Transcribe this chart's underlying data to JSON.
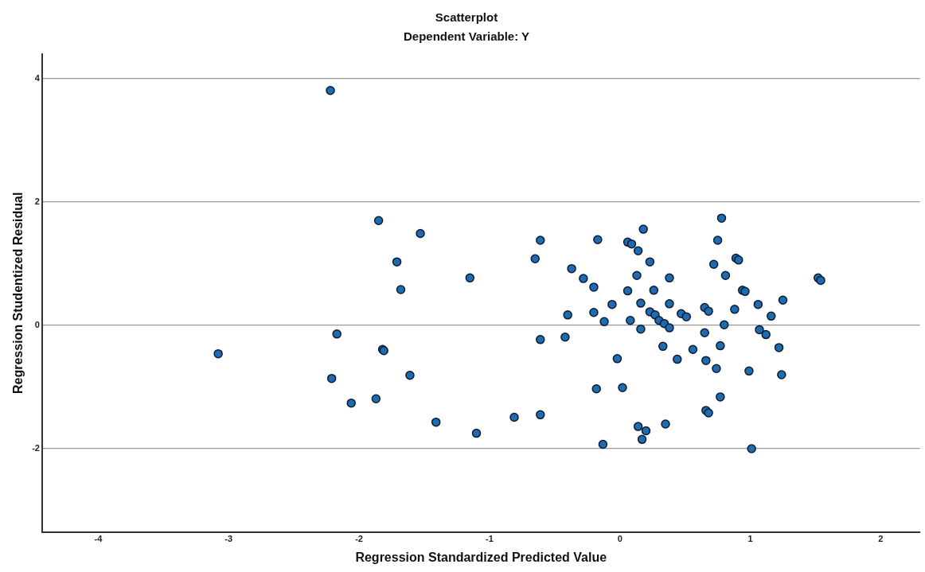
{
  "chart_data": {
    "type": "scatter",
    "title": "Scatterplot",
    "subtitle": "Dependent Variable: Y",
    "xlabel": "Regression Standardized Predicted Value",
    "ylabel": "Regression Studentized Residual",
    "xlim": [
      -4.43,
      2.3
    ],
    "ylim": [
      -3.35,
      4.4
    ],
    "xticks": [
      -4,
      -3,
      -2,
      -1,
      0,
      1,
      2
    ],
    "yticks": [
      -2,
      0,
      2,
      4
    ],
    "grid": "y",
    "marker": "circle",
    "legend": false,
    "series": [
      {
        "color": "#1f6bb0",
        "x": [
          -3.08,
          -2.22,
          -2.17,
          -2.21,
          -2.06,
          -1.87,
          -1.85,
          -1.82,
          -1.81,
          -1.71,
          -1.68,
          -1.61,
          -1.53,
          -1.41,
          -1.15,
          -1.1,
          -0.81,
          -0.61,
          -0.65,
          -0.61,
          -0.61,
          -0.37,
          -0.42,
          -0.4,
          -0.28,
          -0.2,
          -0.2,
          -0.18,
          -0.17,
          -0.12,
          -0.13,
          -0.06,
          -0.02,
          0.02,
          0.06,
          0.08,
          0.06,
          0.09,
          0.14,
          0.14,
          0.2,
          0.17,
          0.18,
          0.23,
          0.13,
          0.16,
          0.26,
          0.38,
          0.16,
          0.23,
          0.27,
          0.3,
          0.34,
          0.38,
          0.38,
          0.33,
          0.44,
          0.47,
          0.51,
          0.56,
          0.65,
          0.68,
          0.65,
          0.66,
          0.74,
          0.77,
          0.66,
          0.68,
          0.77,
          0.35,
          0.78,
          0.75,
          0.72,
          0.81,
          0.89,
          0.91,
          0.8,
          0.88,
          0.94,
          0.96,
          0.99,
          1.06,
          1.07,
          1.12,
          1.16,
          1.25,
          1.22,
          1.24,
          1.01,
          1.52,
          1.54
        ],
        "values": [
          -0.46,
          3.81,
          -0.14,
          -0.86,
          -1.26,
          -1.19,
          1.7,
          -0.39,
          -0.41,
          1.03,
          0.58,
          -0.81,
          1.49,
          -1.57,
          0.77,
          -1.75,
          -1.49,
          1.38,
          1.08,
          -0.23,
          -1.45,
          0.92,
          -0.19,
          0.17,
          0.76,
          0.62,
          0.21,
          -1.03,
          1.39,
          0.06,
          -1.93,
          0.34,
          -0.54,
          -1.01,
          0.56,
          0.08,
          1.35,
          1.32,
          1.21,
          -1.64,
          -1.71,
          -1.85,
          1.56,
          1.03,
          0.81,
          0.36,
          0.57,
          0.77,
          -0.06,
          0.22,
          0.17,
          0.08,
          0.03,
          -0.04,
          0.35,
          -0.34,
          -0.55,
          0.19,
          0.14,
          -0.39,
          0.29,
          0.23,
          -0.12,
          -0.57,
          -0.7,
          -0.33,
          -1.38,
          -1.42,
          -1.16,
          -1.6,
          1.74,
          1.38,
          0.99,
          0.81,
          1.09,
          1.06,
          0.01,
          0.26,
          0.57,
          0.55,
          -0.74,
          0.34,
          -0.07,
          -0.15,
          0.15,
          0.41,
          -0.36,
          -0.8,
          -2.0,
          0.77,
          0.73
        ]
      }
    ]
  }
}
